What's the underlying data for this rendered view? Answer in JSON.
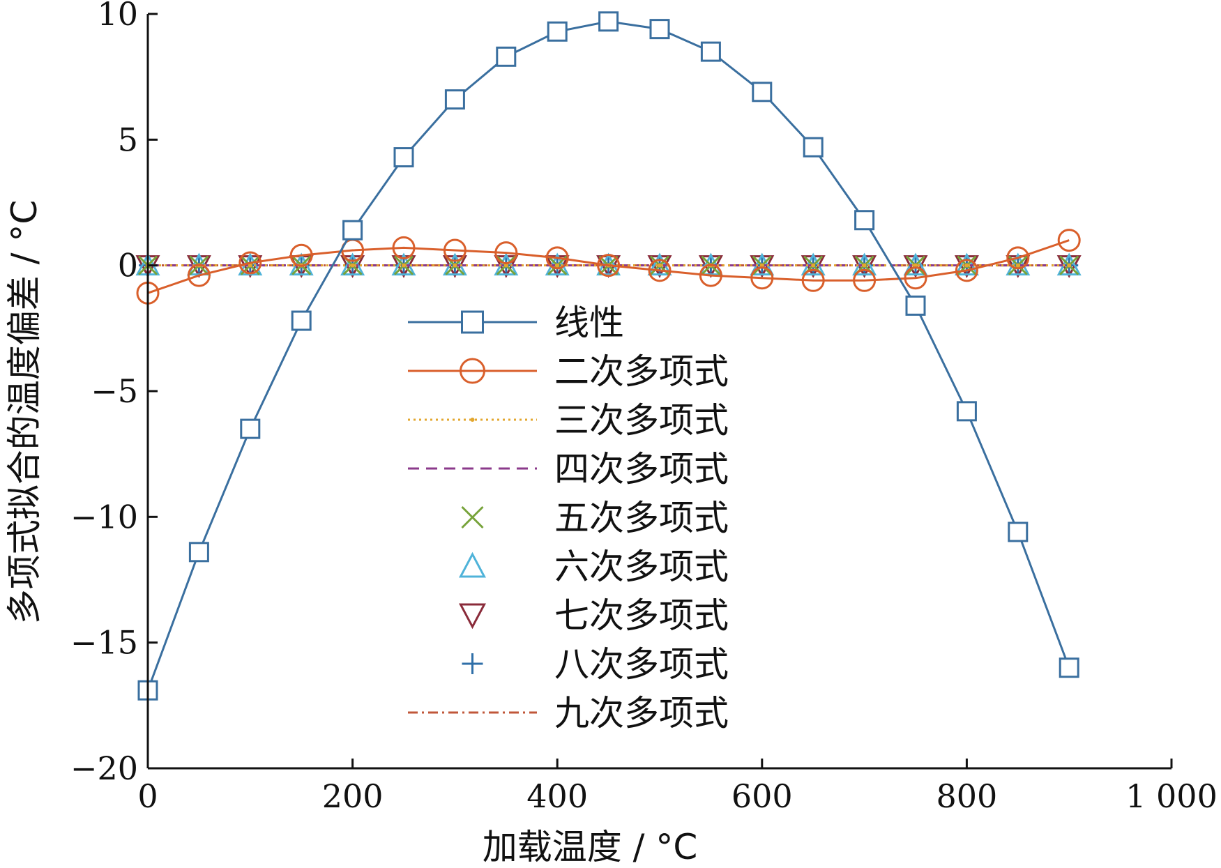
{
  "chart_data": {
    "type": "line",
    "title": "",
    "xlabel": "加载温度 / °C",
    "ylabel": "多项式拟合的温度偏差 / °C",
    "xlim": [
      0,
      1000
    ],
    "ylim": [
      -20,
      10
    ],
    "xticks": [
      0,
      200,
      400,
      600,
      800,
      1000
    ],
    "xtick_labels": [
      "0",
      "200",
      "400",
      "600",
      "800",
      "1 000"
    ],
    "yticks": [
      -20,
      -15,
      -10,
      -5,
      0,
      5,
      10
    ],
    "ytick_labels": [
      "−20",
      "−15",
      "−10",
      "−5",
      "0",
      "5",
      "10"
    ],
    "grid": false,
    "legend_position": "center",
    "x": [
      0,
      50,
      100,
      150,
      200,
      250,
      300,
      350,
      400,
      450,
      500,
      550,
      600,
      650,
      700,
      750,
      800,
      850,
      900
    ],
    "series": [
      {
        "name": "线性",
        "color": "#3a6f9f",
        "line": "solid",
        "marker": "square",
        "values": [
          -16.9,
          -11.4,
          -6.5,
          -2.2,
          1.4,
          4.3,
          6.6,
          8.3,
          9.3,
          9.7,
          9.4,
          8.5,
          6.9,
          4.7,
          1.8,
          -1.6,
          -5.8,
          -10.6,
          -16.0
        ]
      },
      {
        "name": "二次多项式",
        "color": "#d95f2b",
        "line": "solid",
        "marker": "circle",
        "values": [
          -1.1,
          -0.4,
          0.1,
          0.4,
          0.6,
          0.7,
          0.6,
          0.5,
          0.3,
          0.0,
          -0.2,
          -0.4,
          -0.5,
          -0.6,
          -0.6,
          -0.5,
          -0.2,
          0.3,
          1.0
        ]
      },
      {
        "name": "三次多项式",
        "color": "#e3a72f",
        "line": "dotted",
        "marker": "dot",
        "values": [
          0,
          0,
          0,
          0,
          0,
          0,
          0,
          0,
          0,
          0,
          0,
          0,
          0,
          0,
          0,
          0,
          0,
          0,
          0
        ]
      },
      {
        "name": "四次多项式",
        "color": "#8b3a8b",
        "line": "dashed",
        "marker": "none",
        "values": [
          0,
          0,
          0,
          0,
          0,
          0,
          0,
          0,
          0,
          0,
          0,
          0,
          0,
          0,
          0,
          0,
          0,
          0,
          0
        ]
      },
      {
        "name": "五次多项式",
        "color": "#77a33a",
        "line": "none",
        "marker": "x",
        "values": [
          0,
          0,
          0,
          0,
          0,
          0,
          0,
          0,
          0,
          0,
          0,
          0,
          0,
          0,
          0,
          0,
          0,
          0,
          0
        ]
      },
      {
        "name": "六次多项式",
        "color": "#4fb3d9",
        "line": "none",
        "marker": "triangle-up",
        "values": [
          0,
          0,
          0,
          0,
          0,
          0,
          0,
          0,
          0,
          0,
          0,
          0,
          0,
          0,
          0,
          0,
          0,
          0,
          0
        ]
      },
      {
        "name": "七次多项式",
        "color": "#8a2b3a",
        "line": "none",
        "marker": "triangle-down",
        "values": [
          0,
          0,
          0,
          0,
          0,
          0,
          0,
          0,
          0,
          0,
          0,
          0,
          0,
          0,
          0,
          0,
          0,
          0,
          0
        ]
      },
      {
        "name": "八次多项式",
        "color": "#2f6fa8",
        "line": "none",
        "marker": "plus",
        "values": [
          0,
          0,
          0,
          0,
          0,
          0,
          0,
          0,
          0,
          0,
          0,
          0,
          0,
          0,
          0,
          0,
          0,
          0,
          0
        ]
      },
      {
        "name": "九次多项式",
        "color": "#c0573a",
        "line": "dashdot",
        "marker": "none",
        "values": [
          0,
          0,
          0,
          0,
          0,
          0,
          0,
          0,
          0,
          0,
          0,
          0,
          0,
          0,
          0,
          0,
          0,
          0,
          0
        ]
      }
    ]
  }
}
